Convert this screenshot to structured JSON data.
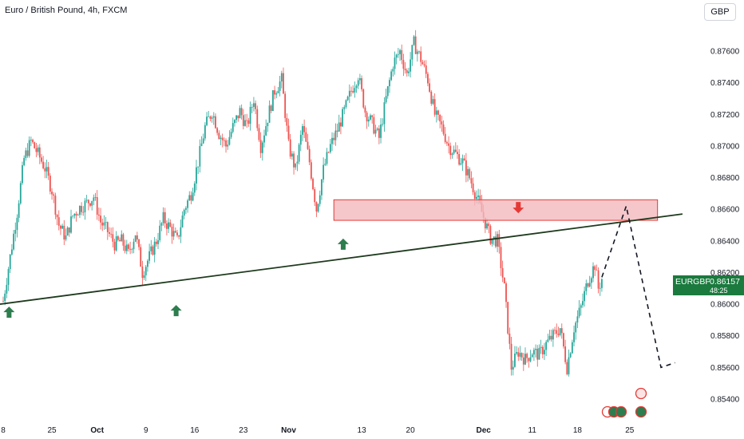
{
  "header": {
    "title": "Euro / British Pound, 4h, FXCM",
    "currency_button": "GBP"
  },
  "price_tag": {
    "symbol": "EURGBP",
    "price": "0.86157",
    "countdown": "48:25"
  },
  "colors": {
    "up": "#26a69a",
    "down": "#ef5350",
    "zone_fill": "#f3b9be",
    "zone_border": "#e53935",
    "trendline": "#1e3a1e",
    "arrow_green": "#2e7d4f",
    "arrow_red": "#e53935",
    "tag_bg": "#1b7a3e"
  },
  "chart_data": {
    "type": "candlestick",
    "title": "Euro / British Pound, 4h, FXCM",
    "y_axis_side": "right",
    "ylim": [
      0.8535,
      0.8782
    ],
    "y_ticks": [
      "0.87600",
      "0.87400",
      "0.87200",
      "0.87000",
      "0.86800",
      "0.86600",
      "0.86400",
      "0.86200",
      "0.86000",
      "0.85800",
      "0.85600",
      "0.85400"
    ],
    "x_ticks": [
      "8",
      "25",
      "Oct",
      "9",
      "16",
      "23",
      "Nov",
      "13",
      "20",
      "Dec",
      "11",
      "18",
      "25"
    ],
    "x_tick_positions": [
      0,
      14,
      27,
      41,
      55,
      69,
      82,
      103,
      117,
      138,
      152,
      165,
      180
    ],
    "last_price": 0.86157,
    "price_path": [
      [
        0,
        0.8602
      ],
      [
        2,
        0.863
      ],
      [
        4,
        0.8658
      ],
      [
        6,
        0.8692
      ],
      [
        8,
        0.8703
      ],
      [
        10,
        0.8695
      ],
      [
        12,
        0.8686
      ],
      [
        14,
        0.8672
      ],
      [
        16,
        0.865
      ],
      [
        18,
        0.8642
      ],
      [
        20,
        0.8656
      ],
      [
        22,
        0.8661
      ],
      [
        24,
        0.8664
      ],
      [
        26,
        0.8668
      ],
      [
        28,
        0.8652
      ],
      [
        30,
        0.8646
      ],
      [
        32,
        0.8638
      ],
      [
        34,
        0.864
      ],
      [
        36,
        0.8632
      ],
      [
        38,
        0.8645
      ],
      [
        40,
        0.862
      ],
      [
        42,
        0.863
      ],
      [
        44,
        0.864
      ],
      [
        46,
        0.8654
      ],
      [
        48,
        0.8648
      ],
      [
        50,
        0.864
      ],
      [
        52,
        0.866
      ],
      [
        54,
        0.867
      ],
      [
        56,
        0.869
      ],
      [
        58,
        0.8712
      ],
      [
        60,
        0.8722
      ],
      [
        62,
        0.8708
      ],
      [
        64,
        0.87
      ],
      [
        66,
        0.8712
      ],
      [
        68,
        0.8722
      ],
      [
        70,
        0.8712
      ],
      [
        72,
        0.873
      ],
      [
        74,
        0.87
      ],
      [
        76,
        0.8718
      ],
      [
        78,
        0.8735
      ],
      [
        80,
        0.8742
      ],
      [
        82,
        0.87
      ],
      [
        84,
        0.8685
      ],
      [
        86,
        0.8712
      ],
      [
        88,
        0.869
      ],
      [
        90,
        0.866
      ],
      [
        92,
        0.8685
      ],
      [
        94,
        0.87
      ],
      [
        96,
        0.871
      ],
      [
        98,
        0.8722
      ],
      [
        100,
        0.8735
      ],
      [
        102,
        0.8745
      ],
      [
        104,
        0.8722
      ],
      [
        106,
        0.8714
      ],
      [
        108,
        0.8705
      ],
      [
        110,
        0.873
      ],
      [
        112,
        0.8752
      ],
      [
        114,
        0.876
      ],
      [
        116,
        0.8745
      ],
      [
        118,
        0.8765
      ],
      [
        120,
        0.8755
      ],
      [
        122,
        0.8742
      ],
      [
        124,
        0.872
      ],
      [
        126,
        0.8712
      ],
      [
        128,
        0.87
      ],
      [
        130,
        0.8695
      ],
      [
        132,
        0.869
      ],
      [
        134,
        0.868
      ],
      [
        136,
        0.8668
      ],
      [
        138,
        0.8655
      ],
      [
        140,
        0.8642
      ],
      [
        142,
        0.864
      ],
      [
        144,
        0.861
      ],
      [
        146,
        0.856
      ],
      [
        148,
        0.857
      ],
      [
        150,
        0.8565
      ],
      [
        152,
        0.857
      ],
      [
        154,
        0.8568
      ],
      [
        156,
        0.8575
      ],
      [
        158,
        0.858
      ],
      [
        160,
        0.8585
      ],
      [
        162,
        0.856
      ],
      [
        164,
        0.8585
      ],
      [
        166,
        0.8598
      ],
      [
        168,
        0.8615
      ],
      [
        170,
        0.8625
      ],
      [
        171,
        0.861
      ],
      [
        172,
        0.8616
      ]
    ],
    "support_zone": {
      "x_start": 95,
      "x_end": 188,
      "y_low": 0.8653,
      "y_high": 0.8666
    },
    "trendline": {
      "x1": 0,
      "y1": 0.86,
      "x2": 197,
      "y2": 0.8657
    },
    "projection_path": [
      [
        172,
        0.8617
      ],
      [
        179,
        0.8662
      ],
      [
        189,
        0.856
      ],
      [
        193,
        0.8563
      ]
    ],
    "green_arrows": [
      [
        1,
        0.85985
      ],
      [
        49,
        0.85995
      ],
      [
        97,
        0.86415
      ]
    ],
    "red_arrows": [
      [
        148,
        0.86575
      ]
    ]
  }
}
